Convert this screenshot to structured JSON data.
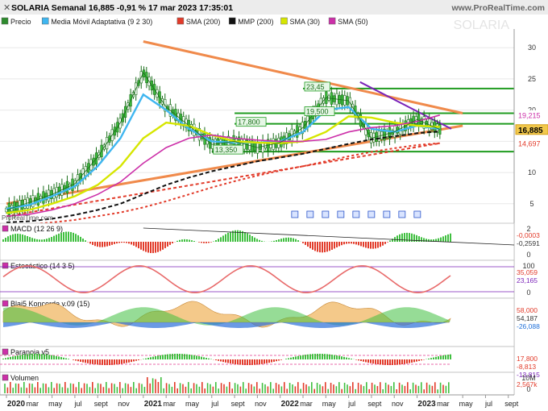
{
  "header": {
    "title": "SOLARIA Semanal 16,885 -0,91 % 17 mar 2023 17:35:01",
    "site": "www.ProRealTime.com",
    "watermark": "SOLARIA",
    "close_icon": "close-icon"
  },
  "legend": [
    {
      "label": "Precio",
      "color": "#2e8b2e"
    },
    {
      "label": "Media Móvil Adaptativa (9 2 30)",
      "color": "#3fb6f0"
    },
    {
      "label": "SMA (200)",
      "color": "#e23b2a"
    },
    {
      "label": "MMP (200)",
      "color": "#111111"
    },
    {
      "label": "SMA (30)",
      "color": "#d6e600"
    },
    {
      "label": "SMA (50)",
      "color": "#cc2fa8"
    }
  ],
  "price_axis": {
    "ticks": [
      "30",
      "25",
      "20",
      "15",
      "10",
      "5"
    ]
  },
  "price_tags": [
    {
      "text": "19,215",
      "bg": "#ffffff",
      "fg": "#cc2fa8"
    },
    {
      "text": "16,885",
      "bg": "#f2c94c",
      "fg": "#000000"
    },
    {
      "text": "14,697",
      "bg": "#ffffff",
      "fg": "#e23b2a"
    }
  ],
  "level_labels": [
    "23,45",
    "19,500",
    "17,800",
    "13,350"
  ],
  "watermark_small": "ProRealTime.com",
  "chart_data": {
    "type": "line",
    "x_dates": [
      "2020-01",
      "2020-03",
      "2020-05",
      "2020-07",
      "2020-09",
      "2020-11",
      "2021-01",
      "2021-03",
      "2021-05",
      "2021-07",
      "2021-09",
      "2021-11",
      "2022-01",
      "2022-03",
      "2022-05",
      "2022-07",
      "2022-09",
      "2022-11",
      "2023-01",
      "2023-03"
    ],
    "series": [
      {
        "name": "Precio",
        "values": [
          4.0,
          5.2,
          6.5,
          8.2,
          12.5,
          18.0,
          26.0,
          20.5,
          17.5,
          14.5,
          15.0,
          14.0,
          14.8,
          17.2,
          22.0,
          21.5,
          15.5,
          16.5,
          18.5,
          16.9
        ]
      },
      {
        "name": "Media Móvil Adaptativa (9 2 30)",
        "values": [
          4.2,
          4.8,
          6.2,
          7.8,
          11.0,
          15.5,
          22.5,
          20.0,
          17.0,
          15.0,
          14.8,
          14.8,
          15.0,
          16.5,
          20.0,
          20.5,
          17.0,
          16.5,
          17.5,
          17.0
        ]
      },
      {
        "name": "SMA (30)",
        "values": [
          3.5,
          4.0,
          5.0,
          6.2,
          8.0,
          11.0,
          15.5,
          18.0,
          17.5,
          16.0,
          15.0,
          14.8,
          14.7,
          15.0,
          16.5,
          19.0,
          18.8,
          18.0,
          17.5,
          17.3
        ]
      },
      {
        "name": "SMA (50)",
        "values": [
          3.0,
          3.3,
          4.0,
          5.0,
          6.5,
          8.5,
          11.5,
          14.0,
          15.5,
          16.0,
          15.5,
          15.2,
          15.0,
          15.0,
          15.3,
          16.5,
          17.2,
          17.5,
          18.2,
          19.2
        ]
      },
      {
        "name": "MMP (200)",
        "values": [
          2.0,
          2.2,
          2.6,
          3.2,
          4.0,
          5.0,
          6.5,
          8.0,
          9.2,
          10.2,
          11.0,
          11.8,
          12.4,
          13.0,
          13.8,
          14.6,
          15.3,
          15.8,
          16.3,
          16.6
        ]
      },
      {
        "name": "SMA (200)",
        "values": [
          1.5,
          1.7,
          2.0,
          2.4,
          3.0,
          3.6,
          4.4,
          5.4,
          6.5,
          7.6,
          8.6,
          9.5,
          10.3,
          11.0,
          11.8,
          12.6,
          13.3,
          13.9,
          14.4,
          14.7
        ]
      }
    ],
    "horizontal_levels": [
      23.45,
      19.5,
      17.8,
      13.35
    ],
    "trendlines": [
      {
        "from": [
          "2021-01",
          31.0
        ],
        "to": [
          "2023-05",
          19.5
        ],
        "color": "#f08a4b"
      },
      {
        "from": [
          "2020-01",
          5.0
        ],
        "to": [
          "2023-05",
          17.5
        ],
        "color": "#f08a4b"
      },
      {
        "from": [
          "2020-01",
          3.0
        ],
        "to": [
          "2023-03",
          14.7
        ],
        "color": "#e23b2a",
        "dashed": true
      },
      {
        "from": [
          "2022-08",
          24.5
        ],
        "to": [
          "2023-04",
          17.0
        ],
        "color": "#7a23b8"
      }
    ],
    "xlabels": [
      "2020",
      "mar",
      "may",
      "jul",
      "sept",
      "nov",
      "2021",
      "mar",
      "may",
      "jul",
      "sept",
      "nov",
      "2022",
      "mar",
      "may",
      "jul",
      "sept",
      "nov",
      "2023",
      "mar",
      "may",
      "jul",
      "sept"
    ],
    "ylim": [
      2,
      33
    ]
  },
  "panels": [
    {
      "name": "MACD (12 26 9)",
      "ticks": [
        "2",
        "0"
      ],
      "tags": [
        {
          "text": "-0,0003",
          "fg": "#e23b2a"
        },
        {
          "text": "-0,2591",
          "fg": "#333333"
        }
      ]
    },
    {
      "name": "Estocástico (14 3 5)",
      "ticks": [
        "100",
        "0"
      ],
      "tags": [
        {
          "text": "35,059",
          "fg": "#e23b2a"
        },
        {
          "text": "23,165",
          "fg": "#7a23b8"
        }
      ]
    },
    {
      "name": "Blai5 Koncorde v.09 (15)",
      "ticks": [],
      "tags": [
        {
          "text": "58,000",
          "fg": "#e23b2a"
        },
        {
          "text": "54,187",
          "fg": "#333333"
        },
        {
          "text": "-26,088",
          "fg": "#1e6fd9"
        }
      ]
    },
    {
      "name": "Paranoia v5",
      "ticks": [],
      "tags": [
        {
          "text": "17,800",
          "fg": "#e23b2a"
        },
        {
          "text": "-8,813",
          "fg": "#e23b2a"
        },
        {
          "text": "-13,815",
          "fg": "#7a23b8"
        }
      ]
    },
    {
      "name": "Volumen",
      "ticks": [
        "10M",
        "0"
      ],
      "tags": [
        {
          "text": "2,567k",
          "fg": "#e23b2a"
        }
      ]
    }
  ]
}
